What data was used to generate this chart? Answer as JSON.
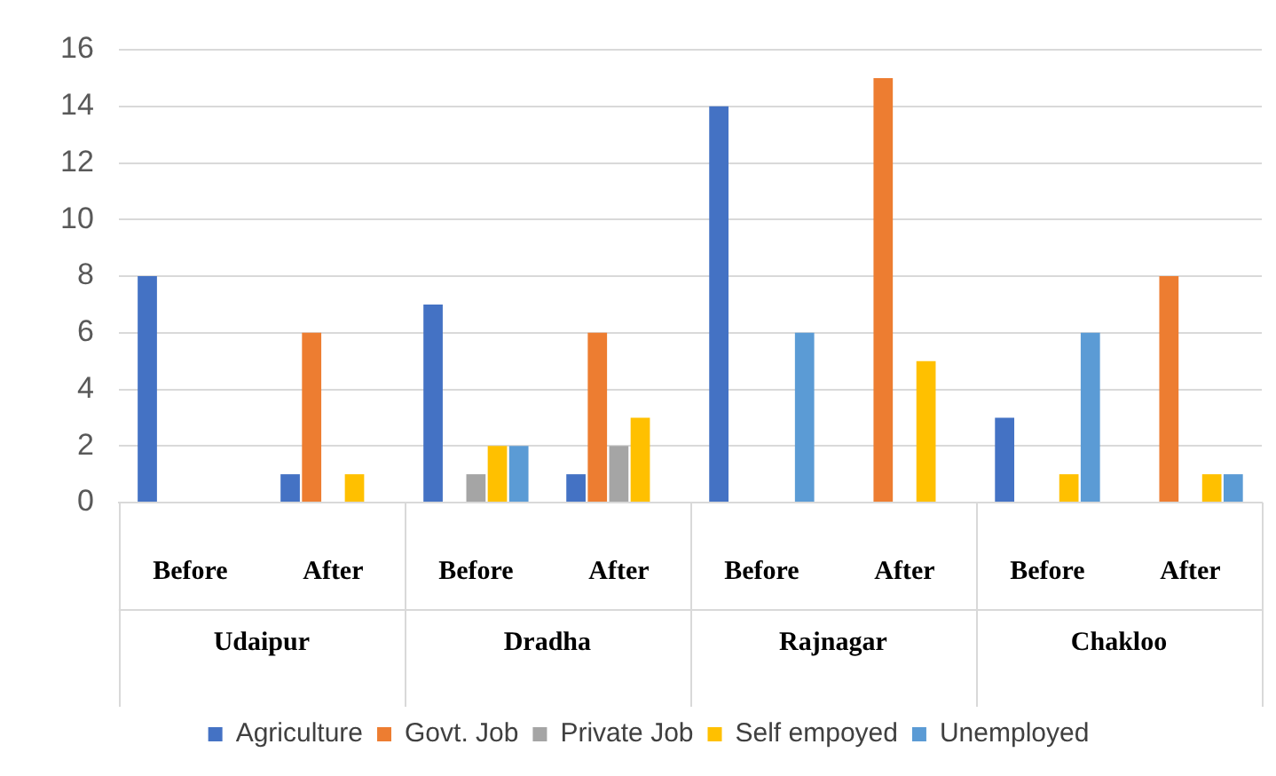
{
  "chart_data": {
    "type": "bar",
    "categories": [
      "Before",
      "After",
      "Before",
      "After",
      "Before",
      "After",
      "Before",
      "After"
    ],
    "annotations": [
      "Udaipur",
      "Dradha",
      "Rajnagar",
      "Chakloo"
    ],
    "series": [
      {
        "name": "Agriculture",
        "color": "#4472c4",
        "values": [
          8,
          1,
          7,
          1,
          14,
          0,
          3,
          0
        ]
      },
      {
        "name": "Govt. Job",
        "color": "#ed7d31",
        "values": [
          0,
          6,
          0,
          6,
          0,
          15,
          0,
          8
        ]
      },
      {
        "name": "Private Job",
        "color": "#a5a5a5",
        "values": [
          0,
          0,
          1,
          2,
          0,
          0,
          0,
          0
        ]
      },
      {
        "name": "Self empoyed",
        "color": "#ffc000",
        "values": [
          0,
          1,
          2,
          3,
          0,
          5,
          1,
          1
        ]
      },
      {
        "name": "Unemployed",
        "color": "#5b9bd5",
        "values": [
          0,
          0,
          2,
          0,
          6,
          0,
          6,
          1
        ]
      }
    ],
    "ylim": [
      0,
      16
    ],
    "yticks": [
      0,
      2,
      4,
      6,
      8,
      10,
      12,
      14,
      16
    ],
    "grid": "y",
    "legend": "bottom"
  }
}
